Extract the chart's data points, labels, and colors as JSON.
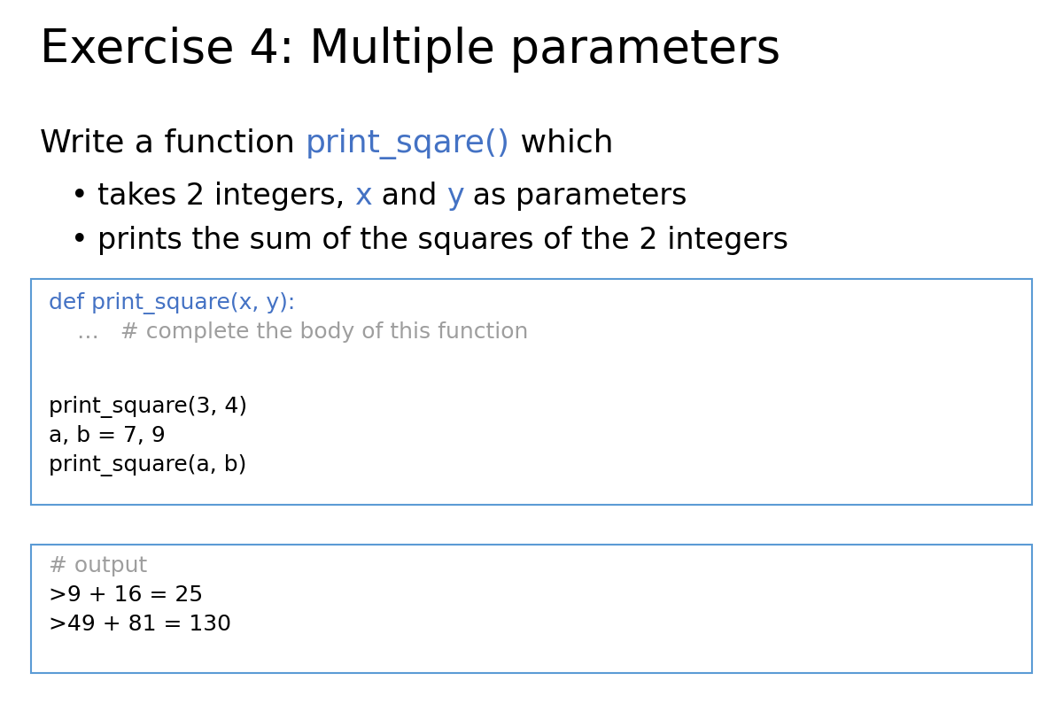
{
  "title": "Exercise 4: Multiple parameters",
  "title_fontsize": 38,
  "title_color": "#000000",
  "bg_color": "#ffffff",
  "intro_text": "Write a function ",
  "intro_func": "print_sqare()",
  "intro_after": " which",
  "intro_fontsize": 26,
  "bullet1_plain": "takes 2 integers, ",
  "bullet1_x": "x",
  "bullet1_mid": " and ",
  "bullet1_y": "y",
  "bullet1_after": " as parameters",
  "bullet2": "prints the sum of the squares of the 2 integers",
  "bullet_fontsize": 24,
  "blue_color": "#4472C4",
  "black_color": "#000000",
  "gray_color": "#9E9E9E",
  "code_box1_lines": [
    {
      "text": "def print_square(x, y):",
      "color": "#4472C4"
    },
    {
      "text": "    …   # complete the body of this function",
      "color": "#9E9E9E"
    },
    {
      "text": "",
      "color": "#000000"
    },
    {
      "text": "print_square(3, 4)",
      "color": "#000000"
    },
    {
      "text": "a, b = 7, 9",
      "color": "#000000"
    },
    {
      "text": "print_square(a, b)",
      "color": "#000000"
    }
  ],
  "code_box2_lines": [
    {
      "text": "# output",
      "color": "#9E9E9E"
    },
    {
      "text": ">9 + 16 = 25",
      "color": "#000000"
    },
    {
      "text": ">49 + 81 = 130",
      "color": "#000000"
    }
  ],
  "code_fontsize": 18,
  "box_border_color": "#5B9BD5",
  "box_bg_color": "#ffffff"
}
